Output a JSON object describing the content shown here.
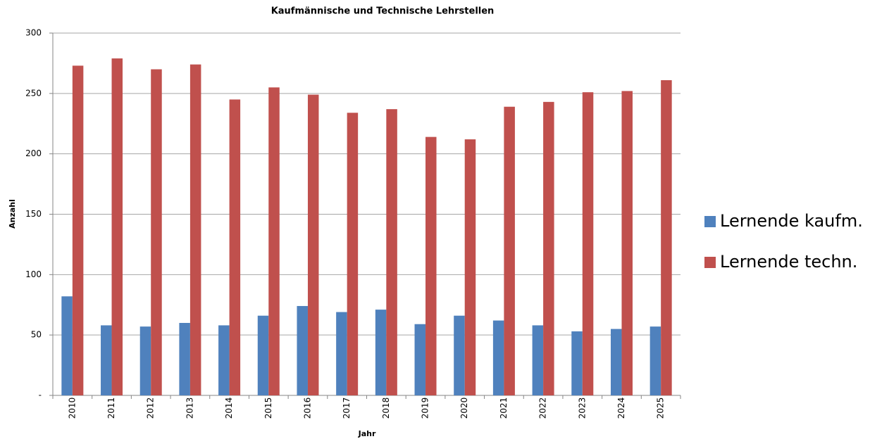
{
  "chart_data": {
    "type": "bar",
    "title": "Kaufmännische und Technische Lehrstellen",
    "x_label": "Jahr",
    "y_label": "Anzahl",
    "categories": [
      "2010",
      "2011",
      "2012",
      "2013",
      "2014",
      "2015",
      "2016",
      "2017",
      "2018",
      "2019",
      "2020",
      "2021",
      "2022",
      "2023",
      "2024",
      "2025"
    ],
    "series": [
      {
        "name": "Lernende kaufm.",
        "color": "#4f81bd",
        "values": [
          82,
          58,
          57,
          60,
          58,
          66,
          74,
          69,
          71,
          59,
          66,
          62,
          58,
          53,
          55,
          57
        ]
      },
      {
        "name": "Lernende techn.",
        "color": "#c0504d",
        "values": [
          273,
          279,
          270,
          274,
          245,
          255,
          249,
          234,
          237,
          214,
          212,
          239,
          243,
          251,
          252,
          261
        ]
      }
    ],
    "ylim": [
      0,
      300
    ],
    "yticks": [
      {
        "value": 0,
        "label": "-"
      },
      50,
      100,
      150,
      200,
      250,
      300
    ],
    "grid": true,
    "legend": "right"
  }
}
